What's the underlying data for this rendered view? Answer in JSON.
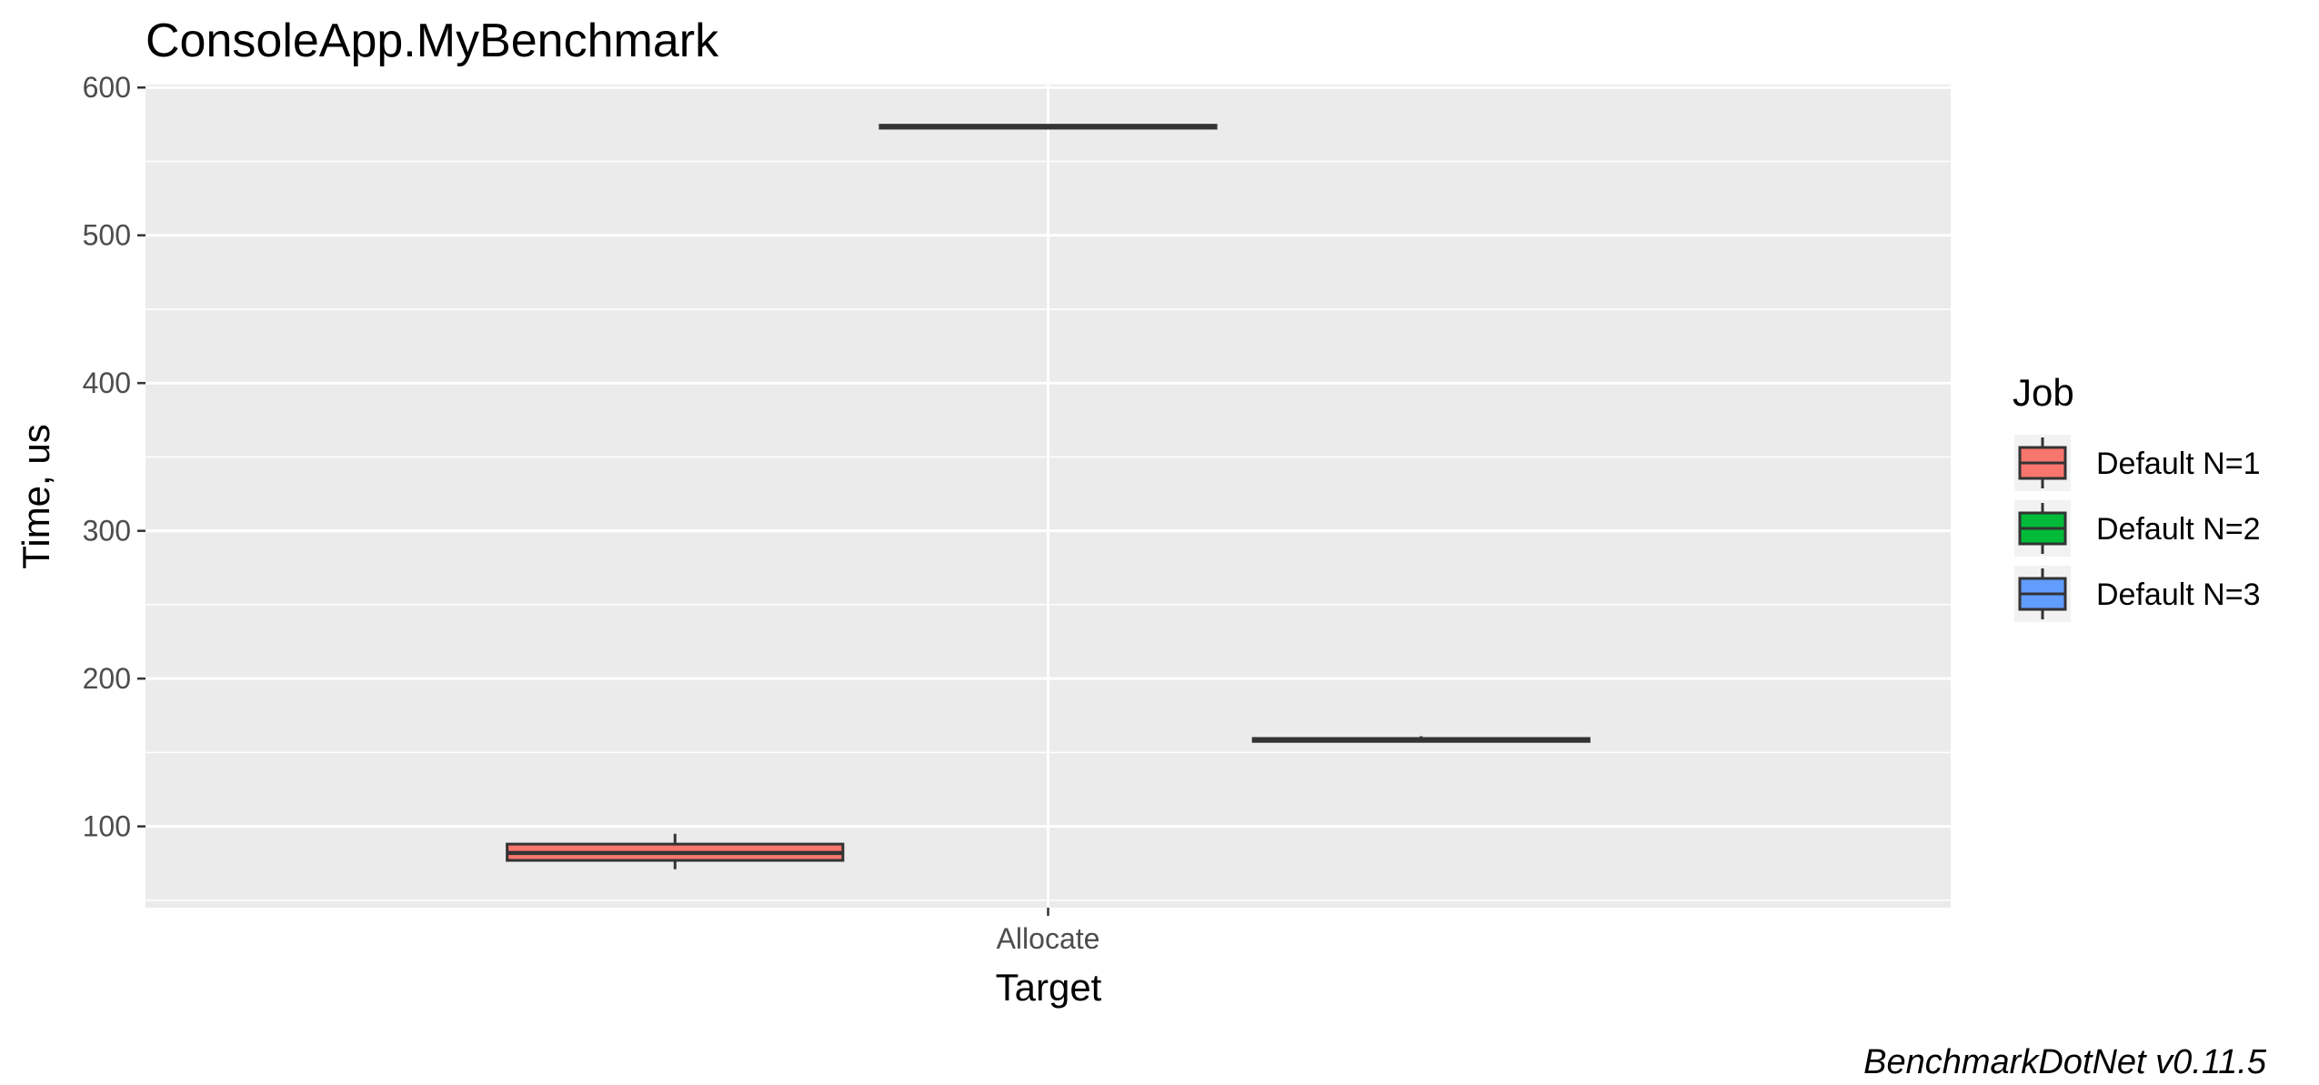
{
  "chart_data": {
    "type": "boxplot",
    "title": "ConsoleApp.MyBenchmark",
    "xlabel": "Target",
    "ylabel": "Time, us",
    "categories": [
      "Allocate"
    ],
    "ylim": [
      45,
      602
    ],
    "yticks": [
      100,
      200,
      300,
      400,
      500,
      600
    ],
    "grid": true,
    "legend": {
      "title": "Job",
      "position": "right"
    },
    "series": [
      {
        "name": "Default N=1",
        "color": "#F8766D",
        "values": [
          {
            "category": "Allocate",
            "min": 71,
            "q1": 77,
            "median": 82,
            "q3": 88,
            "max": 95
          }
        ]
      },
      {
        "name": "Default N=2",
        "color": "#00BA38",
        "values": [
          {
            "category": "Allocate",
            "min": 572,
            "q1": 572.5,
            "median": 573.5,
            "q3": 574.5,
            "max": 575
          }
        ]
      },
      {
        "name": "Default N=3",
        "color": "#619CFF",
        "values": [
          {
            "category": "Allocate",
            "min": 157,
            "q1": 157.5,
            "median": 158.5,
            "q3": 159.5,
            "max": 161
          }
        ]
      }
    ],
    "caption": "BenchmarkDotNet v0.11.5"
  }
}
